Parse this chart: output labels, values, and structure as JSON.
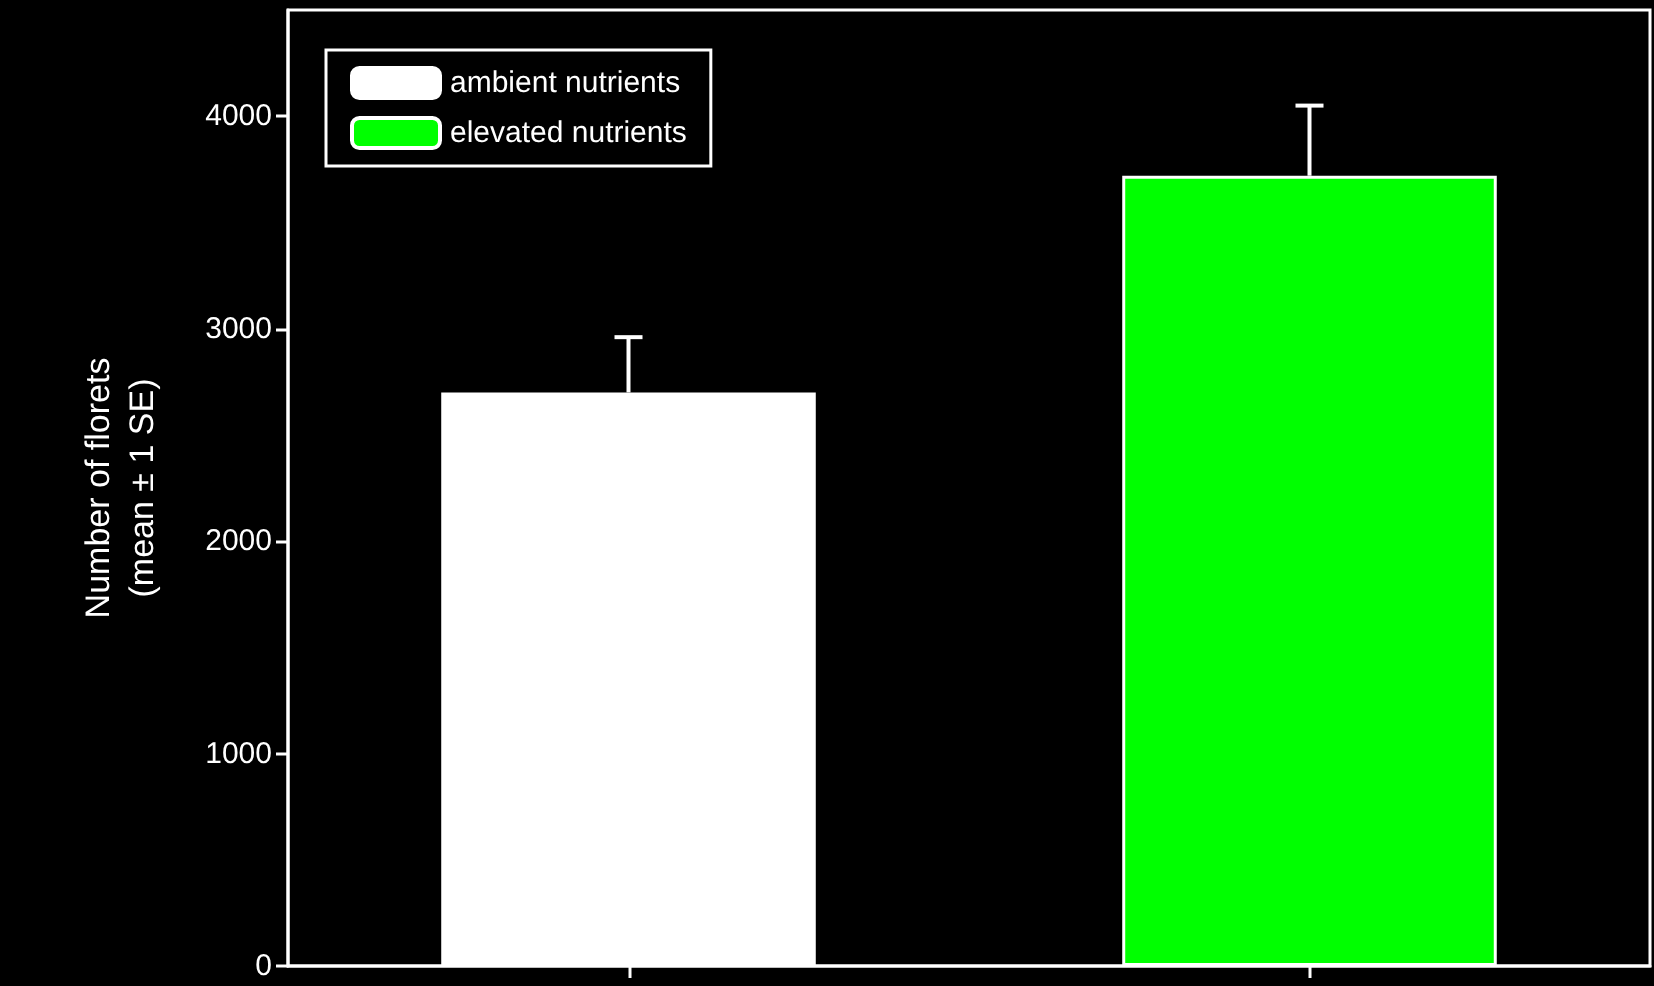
{
  "chart_data": {
    "type": "bar",
    "ylabel": "Number of florets\n(mean ± 1 SE)",
    "categories": [
      null,
      null
    ],
    "series": [
      {
        "name": "ambient nutrients",
        "color": "#ffffff",
        "values": [
          2700,
          null
        ],
        "errors": [
          [
            2700,
            2960
          ],
          null
        ]
      },
      {
        "name": "elevated nutrients",
        "color": "#00ff00",
        "values": [
          null,
          3720
        ],
        "errors": [
          null,
          [
            3720,
            4050
          ]
        ]
      }
    ],
    "ylim": [
      0,
      4500
    ],
    "yticks": [
      0,
      1000,
      2000,
      3000,
      4000
    ],
    "legend": "top left",
    "tick_labels": "y"
  }
}
